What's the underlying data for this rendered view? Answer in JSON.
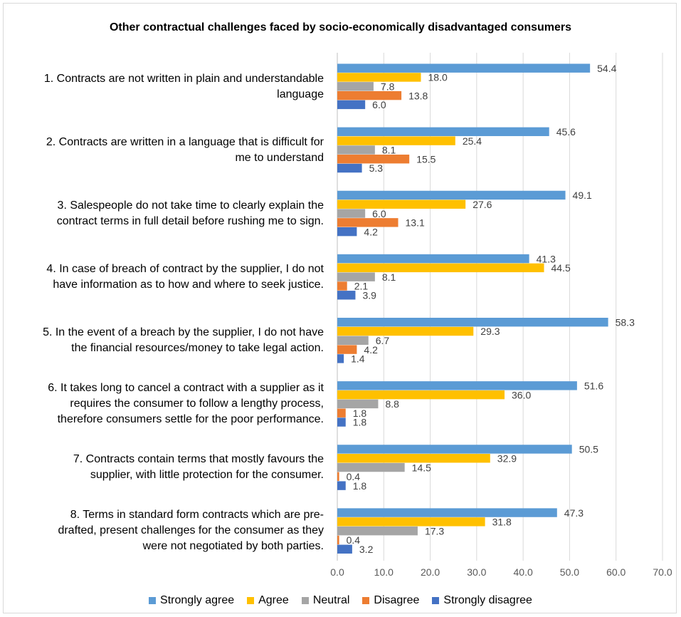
{
  "chart_data": {
    "type": "bar",
    "orientation": "horizontal",
    "title": "Other contractual challenges faced by socio-economically disadvantaged consumers",
    "categories": [
      "1. Contracts are not written in plain and understandable language",
      "2. Contracts are written in a language that is difficult for me to understand",
      "3. Salespeople do not take time to clearly explain the contract terms in full detail before rushing me to sign.",
      "4. In case of breach of contract by the supplier, I do not have information as to how and where to seek justice.",
      "5. In the event of a breach by the supplier, I do not have the financial resources/money to take legal action.",
      "6. It takes long to cancel a contract with a supplier as it requires the consumer to follow a lengthy process, therefore consumers settle for the poor performance.",
      "7. Contracts contain terms that mostly favours the supplier, with little protection for the consumer.",
      "8. Terms in standard form contracts which are pre-drafted, present challenges for the consumer as they were not negotiated by both parties."
    ],
    "category_lines": [
      [
        "1. Contracts are not written in plain and understandable",
        "language"
      ],
      [
        "2. Contracts are written in a language that is difficult for",
        "me to understand"
      ],
      [
        "3. Salespeople do not take time to clearly explain the",
        "contract terms in full detail before rushing me to sign."
      ],
      [
        "4. In case of breach of contract by the supplier, I do not",
        "have information as to how and where to seek justice."
      ],
      [
        "5. In the event of a breach by the supplier, I do not have",
        "the financial resources/money to take legal action."
      ],
      [
        "6. It takes long to cancel a contract with a supplier as it",
        "requires the consumer to follow a lengthy process,",
        "therefore consumers settle for the poor performance."
      ],
      [
        "7. Contracts contain terms that mostly favours the",
        "supplier, with little protection for the consumer."
      ],
      [
        "8. Terms in standard form contracts which are pre-",
        "drafted, present challenges for the consumer as they",
        "were not negotiated by both parties."
      ]
    ],
    "series": [
      {
        "name": "Strongly agree",
        "color": "#5B9BD5",
        "values": [
          54.4,
          45.6,
          49.1,
          41.3,
          58.3,
          51.6,
          50.5,
          47.3
        ],
        "labels": [
          "54.4",
          "45.6",
          "49.1",
          "41.3",
          "58.3",
          "51.6",
          "50.5",
          "47.3"
        ]
      },
      {
        "name": "Agree",
        "color": "#FFC000",
        "values": [
          18.0,
          25.4,
          27.6,
          44.5,
          29.3,
          36.0,
          32.9,
          31.8
        ],
        "labels": [
          "18.0",
          "25.4",
          "27.6",
          "44.5",
          "29.3",
          "36.0",
          "32.9",
          "31.8"
        ]
      },
      {
        "name": "Neutral",
        "color": "#A5A5A5",
        "values": [
          7.8,
          8.1,
          6.0,
          8.1,
          6.7,
          8.8,
          14.5,
          17.3
        ],
        "labels": [
          "7.8",
          "8.1",
          "6.0",
          "8.1",
          "6.7",
          "8.8",
          "14.5",
          "17.3"
        ]
      },
      {
        "name": "Disagree",
        "color": "#ED7D31",
        "values": [
          13.8,
          15.5,
          13.1,
          2.1,
          4.2,
          1.8,
          0.4,
          0.4
        ],
        "labels": [
          "13.8",
          "15.5",
          "13.1",
          "2.1",
          "4.2",
          "1.8",
          "0.4",
          "0.4"
        ]
      },
      {
        "name": "Strongly disagree",
        "color": "#4472C4",
        "values": [
          6.0,
          5.3,
          4.2,
          3.9,
          1.4,
          1.8,
          1.8,
          3.2
        ],
        "labels": [
          "6.0",
          "5.3",
          "4.2",
          "3.9",
          "1.4",
          "1.8",
          "1.8",
          "3.2"
        ]
      }
    ],
    "xlim": [
      0,
      70
    ],
    "xticks": [
      "0.0",
      "10.0",
      "20.0",
      "30.0",
      "40.0",
      "50.0",
      "60.0",
      "70.0"
    ],
    "grid": true,
    "legend_position": "bottom"
  }
}
